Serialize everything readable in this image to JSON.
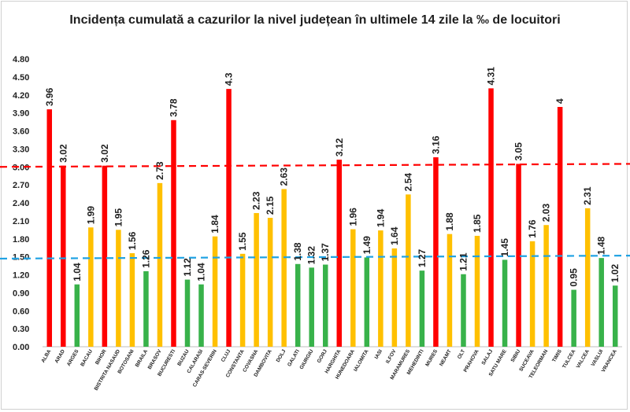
{
  "chart_data": {
    "type": "bar",
    "title": "Incidența cumulată a cazurilor la nivel județean în ultimele 14 zile la ‰ de locuitori",
    "xlabel": "",
    "ylabel": "",
    "ylim": [
      0,
      4.8
    ],
    "yticks": [
      "0.00",
      "0.30",
      "0.60",
      "0.90",
      "1.20",
      "1.50",
      "1.80",
      "2.10",
      "2.40",
      "2.70",
      "3.00",
      "3.30",
      "3.60",
      "3.90",
      "4.20",
      "4.50",
      "4.80"
    ],
    "grid": false,
    "categories": [
      "ALBA",
      "ARAD",
      "ARGES",
      "BACAU",
      "BIHOR",
      "BISTRITA NASAUD",
      "BOTOSANI",
      "BRAILA",
      "BRASOV",
      "BUCURESTI",
      "BUZAU",
      "CALARASI",
      "CARAS-SEVERIN",
      "CLUJ",
      "CONSTANTA",
      "COVASNA",
      "DAMBOVITA",
      "DOLJ",
      "GALATI",
      "GIURGIU",
      "GORJ",
      "HARGHITA",
      "HUNEDOARA",
      "IALOMITA",
      "IASI",
      "ILFOV",
      "MARAMURES",
      "MEHEDINTI",
      "MURES",
      "NEAMT",
      "OLT",
      "PRAHOVA",
      "SALAJ",
      "SATU MARE",
      "SIBIU",
      "SUCEAVA",
      "TELEORMAN",
      "TIMIS",
      "TULCEA",
      "VALCEA",
      "VASLUI",
      "VRANCEA"
    ],
    "values": [
      3.96,
      3.02,
      1.04,
      1.99,
      3.02,
      1.95,
      1.56,
      1.26,
      2.73,
      3.78,
      1.12,
      1.04,
      1.84,
      4.3,
      1.55,
      2.23,
      2.15,
      2.63,
      1.38,
      1.32,
      1.37,
      3.12,
      1.96,
      1.49,
      1.94,
      1.64,
      2.54,
      1.27,
      3.16,
      1.88,
      1.21,
      1.85,
      4.31,
      1.45,
      3.05,
      1.76,
      2.03,
      4,
      0.95,
      2.31,
      1.48,
      1.02
    ],
    "value_labels": [
      "3.96",
      "3.02",
      "1.04",
      "1.99",
      "3.02",
      "1.95",
      "1.56",
      "1.26",
      "2.73",
      "3.78",
      "1.12",
      "1.04",
      "1.84",
      "4.3",
      "1.55",
      "2.23",
      "2.15",
      "2.63",
      "1.38",
      "1.32",
      "1.37",
      "3.12",
      "1.96",
      "1.49",
      "1.94",
      "1.64",
      "2.54",
      "1.27",
      "3.16",
      "1.88",
      "1.21",
      "1.85",
      "4.31",
      "1.45",
      "3.05",
      "1.76",
      "2.03",
      "4",
      "0.95",
      "2.31",
      "1.48",
      "1.02"
    ],
    "thresholds": [
      {
        "name": "red-threshold",
        "value": 3.0,
        "color": "#ff0000",
        "end_value": 3.05
      },
      {
        "name": "blue-threshold",
        "value": 1.47,
        "color": "#1fa2e3",
        "end_value": 1.52
      }
    ],
    "colors": {
      "red": "#ff0000",
      "yellow": "#ffc000",
      "green": "#38b24a"
    }
  }
}
